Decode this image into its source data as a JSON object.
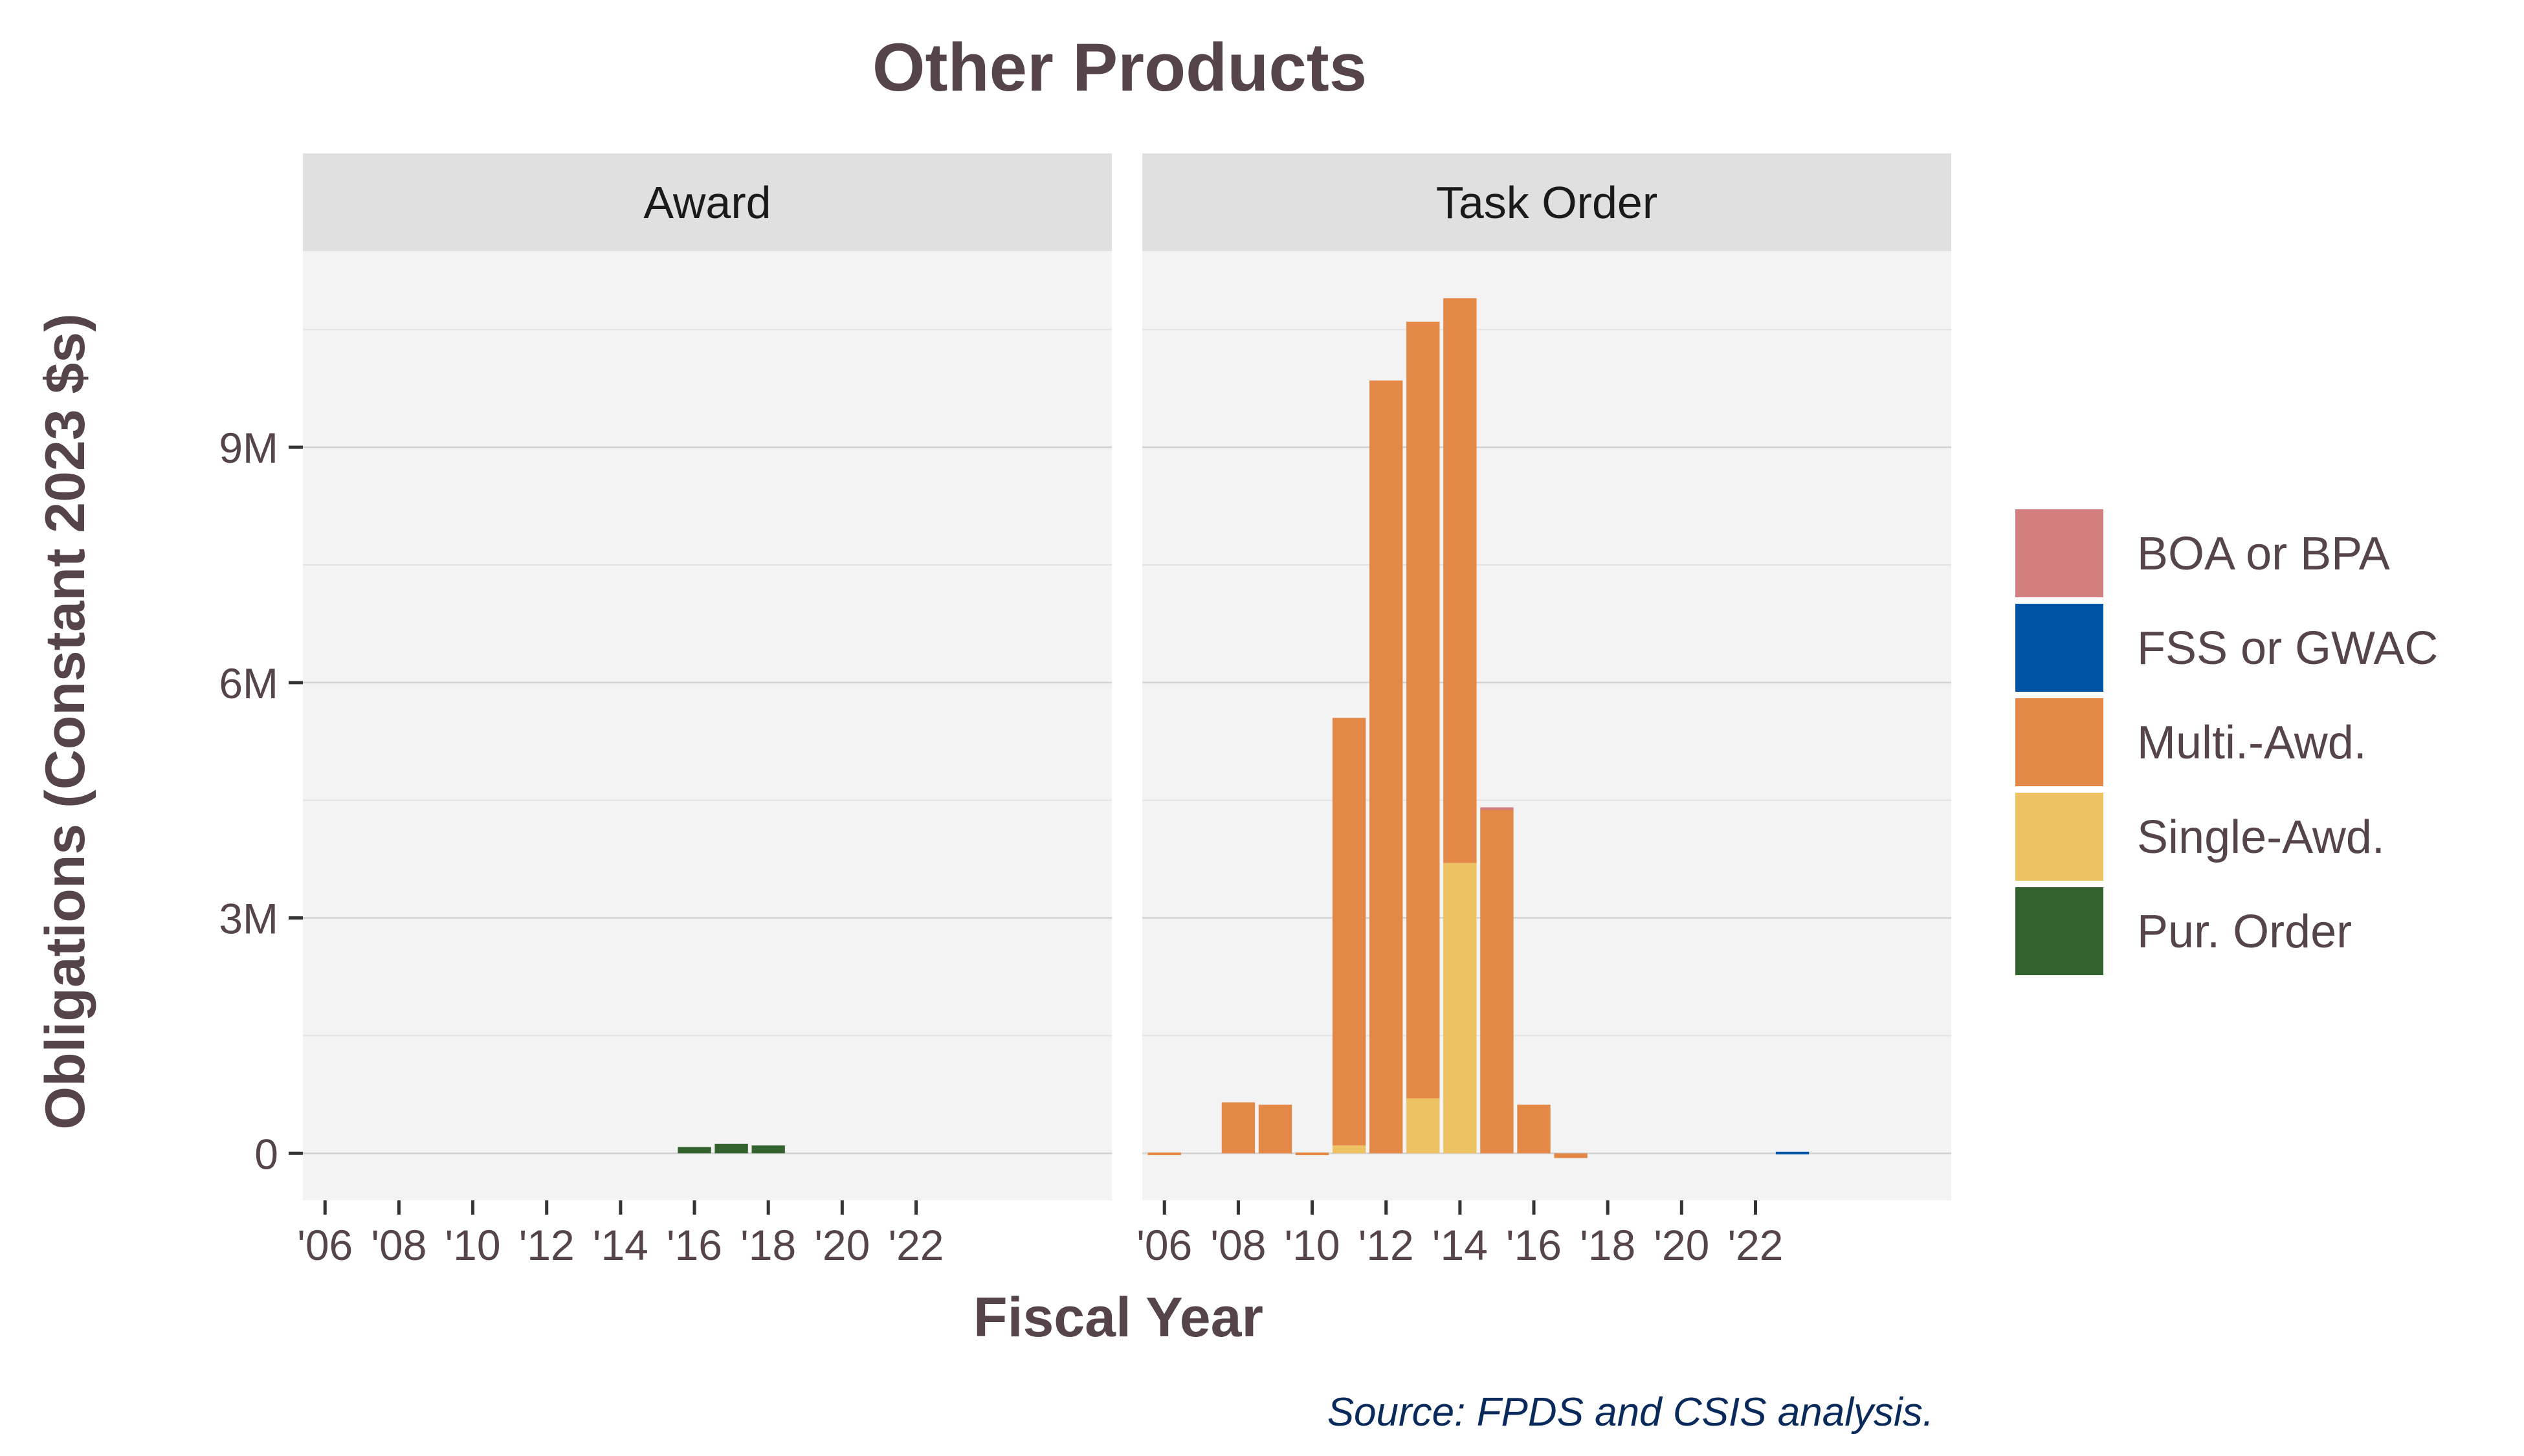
{
  "chart_data": {
    "type": "bar",
    "stacked": true,
    "title": "Other Products",
    "xlabel": "Fiscal Year",
    "ylabel": "Obligations (Constant 2023 $s)",
    "caption": "Source: FPDS and CSIS analysis.",
    "x": [
      2006,
      2007,
      2008,
      2009,
      2010,
      2011,
      2012,
      2013,
      2014,
      2015,
      2016,
      2017,
      2018,
      2019,
      2020,
      2021,
      2022,
      2023
    ],
    "x_ticks": [
      {
        "value": 2006,
        "label": "'06"
      },
      {
        "value": 2008,
        "label": "'08"
      },
      {
        "value": 2010,
        "label": "'10"
      },
      {
        "value": 2012,
        "label": "'12"
      },
      {
        "value": 2014,
        "label": "'14"
      },
      {
        "value": 2016,
        "label": "'16"
      },
      {
        "value": 2018,
        "label": "'18"
      },
      {
        "value": 2020,
        "label": "'20"
      },
      {
        "value": 2022,
        "label": "'22"
      }
    ],
    "y_ticks": [
      {
        "value": 0,
        "label": "0"
      },
      {
        "value": 3000000,
        "label": "3M"
      },
      {
        "value": 6000000,
        "label": "6M"
      },
      {
        "value": 9000000,
        "label": "9M"
      }
    ],
    "ylim": [
      -600000,
      11500000
    ],
    "grid": true,
    "legend_position": "right",
    "legend": [
      {
        "name": "BOA or BPA",
        "color": "#d47f7f"
      },
      {
        "name": "FSS or GWAC",
        "color": "#0054a6"
      },
      {
        "name": "Multi.-Awd.",
        "color": "#e38846"
      },
      {
        "name": "Single-Awd.",
        "color": "#edc262"
      },
      {
        "name": "Pur. Order",
        "color": "#33622f"
      }
    ],
    "stack_order": [
      "Pur. Order",
      "Single-Awd.",
      "Multi.-Awd.",
      "FSS or GWAC",
      "BOA or BPA"
    ],
    "panels": [
      {
        "label": "Award",
        "series": [
          {
            "name": "Pur. Order",
            "values": [
              0,
              0,
              0,
              0,
              0,
              0,
              0,
              0,
              0,
              0,
              80000,
              120000,
              100000,
              0,
              0,
              0,
              0,
              0
            ]
          }
        ]
      },
      {
        "label": "Task Order",
        "series": [
          {
            "name": "Single-Awd.",
            "values": [
              0,
              0,
              0,
              0,
              0,
              100000,
              0,
              700000,
              3700000,
              0,
              0,
              0,
              0,
              0,
              0,
              0,
              0,
              0
            ]
          },
          {
            "name": "Multi.-Awd.",
            "values": [
              10000,
              0,
              650000,
              620000,
              10000,
              5450000,
              9850000,
              9900000,
              7200000,
              4380000,
              620000,
              -60000,
              0,
              0,
              0,
              0,
              0,
              0
            ]
          },
          {
            "name": "FSS or GWAC",
            "values": [
              0,
              0,
              0,
              0,
              0,
              0,
              0,
              0,
              0,
              0,
              0,
              0,
              0,
              0,
              0,
              0,
              0,
              20000
            ]
          },
          {
            "name": "BOA or BPA",
            "values": [
              0,
              0,
              0,
              0,
              0,
              0,
              0,
              0,
              0,
              30000,
              0,
              0,
              0,
              0,
              0,
              0,
              0,
              0
            ]
          }
        ]
      }
    ]
  }
}
